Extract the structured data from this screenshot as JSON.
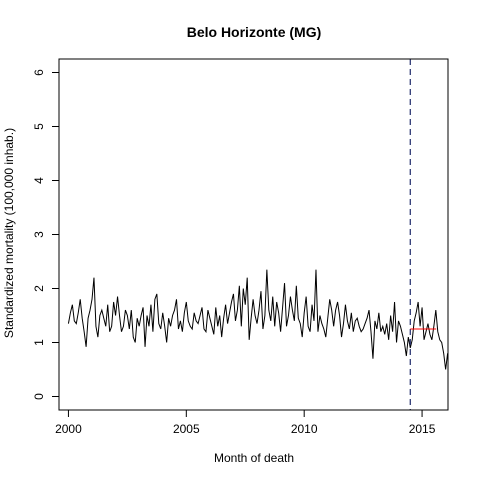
{
  "chart_data": {
    "type": "line",
    "title": "Belo Horizonte (MG)",
    "xlabel": "Month of death",
    "ylabel": "Standardized mortality (100,000 inhab.)",
    "xlim": [
      1999.6,
      2016.1
    ],
    "ylim": [
      -0.25,
      6.25
    ],
    "x_ticks": [
      2000,
      2005,
      2010,
      2015
    ],
    "x_tick_labels": [
      "2000",
      "2005",
      "2010",
      "2015"
    ],
    "y_ticks": [
      0,
      1,
      2,
      3,
      4,
      5,
      6
    ],
    "y_tick_labels": [
      "0",
      "1",
      "2",
      "3",
      "4",
      "5",
      "6"
    ],
    "grid": false,
    "colors": {
      "series": "#000000",
      "vline": "#1f2a6b",
      "reference": "#ff0000"
    },
    "vline_x": 2014.5,
    "reference_segment": {
      "x_start": 2014.5,
      "x_end": 2015.6,
      "y": 1.25
    },
    "series": [
      {
        "start_year": 2000,
        "step_months": 1,
        "values": [
          1.35,
          1.55,
          1.7,
          1.4,
          1.35,
          1.55,
          1.8,
          1.45,
          1.2,
          0.92,
          1.45,
          1.6,
          1.8,
          2.2,
          1.3,
          1.1,
          1.5,
          1.6,
          1.45,
          1.3,
          1.7,
          1.2,
          1.3,
          1.75,
          1.5,
          1.85,
          1.5,
          1.2,
          1.3,
          1.6,
          1.5,
          1.25,
          1.6,
          1.1,
          1.0,
          1.45,
          1.3,
          1.5,
          1.65,
          0.92,
          1.5,
          1.3,
          1.7,
          1.2,
          1.8,
          1.9,
          1.35,
          1.25,
          1.55,
          1.3,
          1.0,
          1.45,
          1.3,
          1.5,
          1.6,
          1.8,
          1.25,
          1.4,
          1.2,
          1.55,
          1.75,
          1.4,
          1.3,
          1.25,
          1.55,
          1.4,
          1.35,
          1.5,
          1.65,
          1.25,
          1.2,
          1.6,
          1.45,
          1.3,
          1.15,
          1.65,
          1.3,
          1.5,
          1.1,
          1.45,
          1.7,
          1.35,
          1.55,
          1.75,
          1.9,
          1.4,
          1.6,
          2.05,
          1.3,
          2.0,
          1.7,
          2.2,
          1.05,
          1.45,
          1.8,
          1.5,
          1.35,
          1.6,
          1.95,
          1.25,
          1.5,
          2.35,
          1.6,
          1.4,
          1.85,
          1.3,
          1.75,
          1.55,
          1.2,
          1.65,
          2.1,
          1.3,
          1.5,
          1.85,
          1.6,
          1.4,
          2.05,
          1.45,
          1.35,
          1.1,
          1.55,
          1.85,
          1.3,
          1.2,
          1.7,
          1.4,
          2.35,
          1.2,
          1.5,
          1.35,
          1.25,
          1.1,
          1.45,
          1.8,
          1.6,
          1.3,
          1.6,
          1.75,
          1.5,
          1.1,
          1.35,
          1.7,
          1.4,
          1.25,
          1.55,
          1.2,
          1.4,
          1.45,
          1.3,
          1.2,
          1.25,
          1.35,
          1.45,
          1.6,
          1.2,
          0.7,
          1.4,
          1.25,
          1.55,
          1.2,
          1.3,
          1.15,
          1.35,
          1.05,
          1.5,
          1.2,
          1.75,
          1.0,
          1.4,
          1.3,
          1.15,
          1.0,
          0.75,
          1.1,
          0.9,
          1.05,
          1.4,
          1.55,
          1.75,
          1.3,
          1.65,
          1.05,
          1.2,
          1.35,
          1.15,
          1.05,
          1.3,
          1.6,
          1.2,
          1.05,
          1.0,
          0.8,
          0.5,
          0.8
        ]
      }
    ]
  }
}
